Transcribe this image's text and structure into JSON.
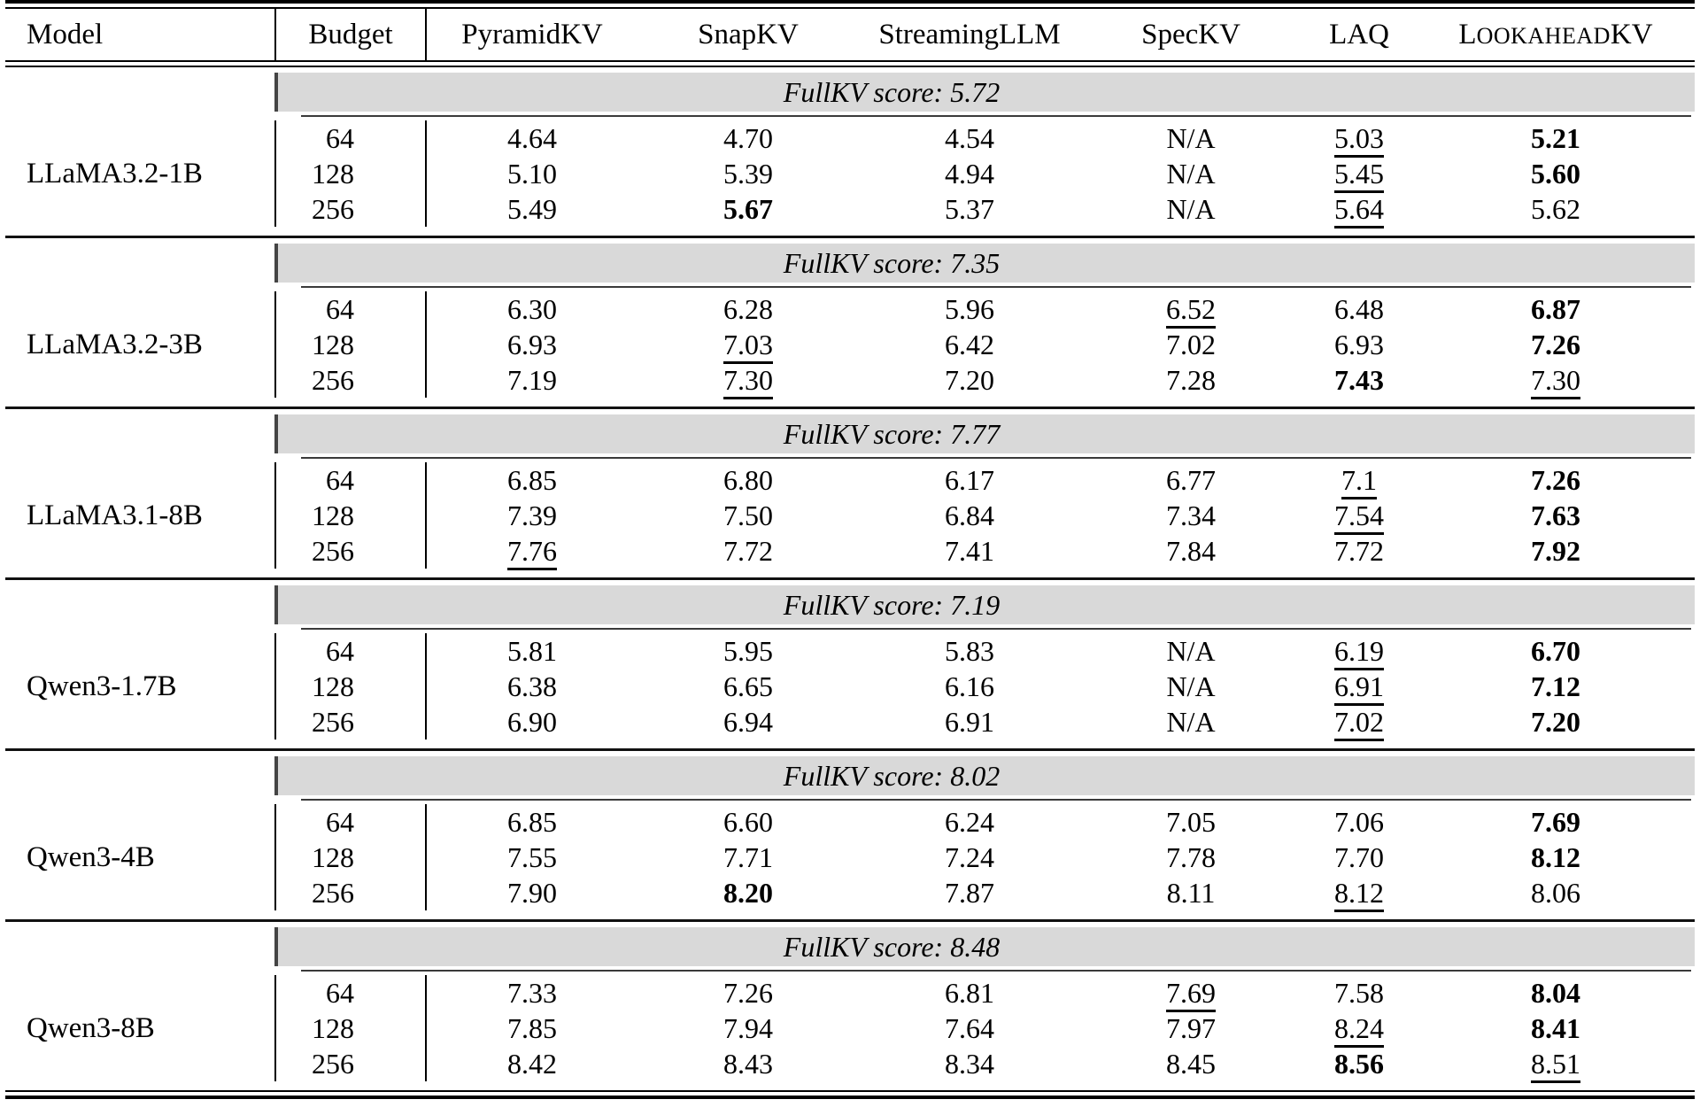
{
  "table": {
    "headers": {
      "model": "Model",
      "budget": "Budget",
      "methods": [
        "PyramidKV",
        "SnapKV",
        "StreamingLLM",
        "SpecKV",
        "LAQ"
      ],
      "lookahead": {
        "l": "L",
        "mid": "OOKAHEAD",
        "kv": "KV"
      }
    },
    "band_bg_color": "#d9d9d9",
    "sections": [
      {
        "model": "LLaMA3.2-1B",
        "fullkv_label": "FullKV score: 5.72",
        "rows": [
          {
            "budget": "64",
            "cells": [
              {
                "v": "4.64"
              },
              {
                "v": "4.70"
              },
              {
                "v": "4.54"
              },
              {
                "v": "N/A"
              },
              {
                "v": "5.03",
                "u": true
              },
              {
                "v": "5.21",
                "b": true
              }
            ]
          },
          {
            "budget": "128",
            "cells": [
              {
                "v": "5.10"
              },
              {
                "v": "5.39"
              },
              {
                "v": "4.94"
              },
              {
                "v": "N/A"
              },
              {
                "v": "5.45",
                "u": true
              },
              {
                "v": "5.60",
                "b": true
              }
            ]
          },
          {
            "budget": "256",
            "cells": [
              {
                "v": "5.49"
              },
              {
                "v": "5.67",
                "b": true
              },
              {
                "v": "5.37"
              },
              {
                "v": "N/A"
              },
              {
                "v": "5.64",
                "u": true
              },
              {
                "v": "5.62"
              }
            ]
          }
        ]
      },
      {
        "model": "LLaMA3.2-3B",
        "fullkv_label": "FullKV score: 7.35",
        "rows": [
          {
            "budget": "64",
            "cells": [
              {
                "v": "6.30"
              },
              {
                "v": "6.28"
              },
              {
                "v": "5.96"
              },
              {
                "v": "6.52",
                "u": true
              },
              {
                "v": "6.48"
              },
              {
                "v": "6.87",
                "b": true
              }
            ]
          },
          {
            "budget": "128",
            "cells": [
              {
                "v": "6.93"
              },
              {
                "v": "7.03",
                "u": true
              },
              {
                "v": "6.42"
              },
              {
                "v": "7.02"
              },
              {
                "v": "6.93"
              },
              {
                "v": "7.26",
                "b": true
              }
            ]
          },
          {
            "budget": "256",
            "cells": [
              {
                "v": "7.19"
              },
              {
                "v": "7.30",
                "u": true
              },
              {
                "v": "7.20"
              },
              {
                "v": "7.28"
              },
              {
                "v": "7.43",
                "b": true
              },
              {
                "v": "7.30",
                "u": true
              }
            ]
          }
        ]
      },
      {
        "model": "LLaMA3.1-8B",
        "fullkv_label": "FullKV score: 7.77",
        "rows": [
          {
            "budget": "64",
            "cells": [
              {
                "v": "6.85"
              },
              {
                "v": "6.80"
              },
              {
                "v": "6.17"
              },
              {
                "v": "6.77"
              },
              {
                "v": "7.1",
                "u": true
              },
              {
                "v": "7.26",
                "b": true
              }
            ]
          },
          {
            "budget": "128",
            "cells": [
              {
                "v": "7.39"
              },
              {
                "v": "7.50"
              },
              {
                "v": "6.84"
              },
              {
                "v": "7.34"
              },
              {
                "v": "7.54",
                "u": true
              },
              {
                "v": "7.63",
                "b": true
              }
            ]
          },
          {
            "budget": "256",
            "cells": [
              {
                "v": "7.76",
                "u": true
              },
              {
                "v": "7.72"
              },
              {
                "v": "7.41"
              },
              {
                "v": "7.84"
              },
              {
                "v": "7.72"
              },
              {
                "v": "7.92",
                "b": true
              }
            ]
          }
        ]
      },
      {
        "model": "Qwen3-1.7B",
        "fullkv_label": "FullKV score: 7.19",
        "rows": [
          {
            "budget": "64",
            "cells": [
              {
                "v": "5.81"
              },
              {
                "v": "5.95"
              },
              {
                "v": "5.83"
              },
              {
                "v": "N/A"
              },
              {
                "v": "6.19",
                "u": true
              },
              {
                "v": "6.70",
                "b": true
              }
            ]
          },
          {
            "budget": "128",
            "cells": [
              {
                "v": "6.38"
              },
              {
                "v": "6.65"
              },
              {
                "v": "6.16"
              },
              {
                "v": "N/A"
              },
              {
                "v": "6.91",
                "u": true
              },
              {
                "v": "7.12",
                "b": true
              }
            ]
          },
          {
            "budget": "256",
            "cells": [
              {
                "v": "6.90"
              },
              {
                "v": "6.94"
              },
              {
                "v": "6.91"
              },
              {
                "v": "N/A"
              },
              {
                "v": "7.02",
                "u": true
              },
              {
                "v": "7.20",
                "b": true
              }
            ]
          }
        ]
      },
      {
        "model": "Qwen3-4B",
        "fullkv_label": "FullKV score: 8.02",
        "rows": [
          {
            "budget": "64",
            "cells": [
              {
                "v": "6.85"
              },
              {
                "v": "6.60"
              },
              {
                "v": "6.24"
              },
              {
                "v": "7.05"
              },
              {
                "v": "7.06"
              },
              {
                "v": "7.69",
                "b": true
              }
            ]
          },
          {
            "budget": "128",
            "cells": [
              {
                "v": "7.55"
              },
              {
                "v": "7.71"
              },
              {
                "v": "7.24"
              },
              {
                "v": "7.78"
              },
              {
                "v": "7.70"
              },
              {
                "v": "8.12",
                "b": true
              }
            ]
          },
          {
            "budget": "256",
            "cells": [
              {
                "v": "7.90"
              },
              {
                "v": "8.20",
                "b": true
              },
              {
                "v": "7.87"
              },
              {
                "v": "8.11"
              },
              {
                "v": "8.12",
                "u": true
              },
              {
                "v": "8.06"
              }
            ]
          }
        ]
      },
      {
        "model": "Qwen3-8B",
        "fullkv_label": "FullKV score: 8.48",
        "rows": [
          {
            "budget": "64",
            "cells": [
              {
                "v": "7.33"
              },
              {
                "v": "7.26"
              },
              {
                "v": "6.81"
              },
              {
                "v": "7.69",
                "u": true
              },
              {
                "v": "7.58"
              },
              {
                "v": "8.04",
                "b": true
              }
            ]
          },
          {
            "budget": "128",
            "cells": [
              {
                "v": "7.85"
              },
              {
                "v": "7.94"
              },
              {
                "v": "7.64"
              },
              {
                "v": "7.97"
              },
              {
                "v": "8.24",
                "u": true
              },
              {
                "v": "8.41",
                "b": true
              }
            ]
          },
          {
            "budget": "256",
            "cells": [
              {
                "v": "8.42"
              },
              {
                "v": "8.43"
              },
              {
                "v": "8.34"
              },
              {
                "v": "8.45"
              },
              {
                "v": "8.56",
                "b": true
              },
              {
                "v": "8.51",
                "u": true
              }
            ]
          }
        ]
      }
    ]
  }
}
